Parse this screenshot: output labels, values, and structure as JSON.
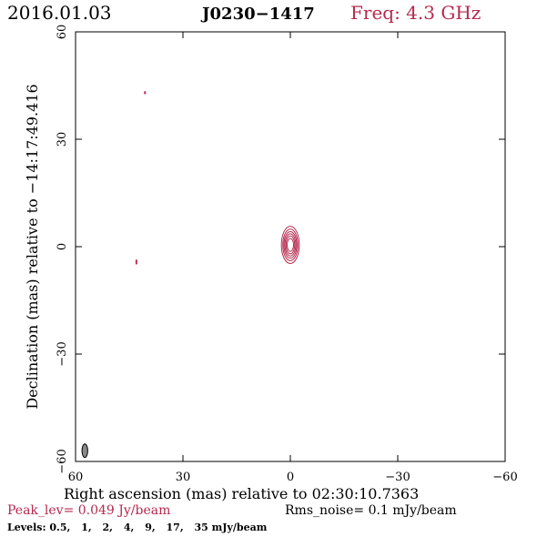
{
  "header": {
    "date": "2016.01.03",
    "source": "J0230−1417",
    "freq": "Freq: 4.3 GHz"
  },
  "colors": {
    "accent": "#b5294d",
    "frame": "#000000",
    "beam": "#888888"
  },
  "footer": {
    "peak": "Peak_lev=  0.049 Jy/beam",
    "rms": "Rms_noise=  0.1 mJy/beam",
    "levels_label": "Levels:",
    "levels": [
      "0.5,",
      "1,",
      "2,",
      "4,",
      "9,",
      "17,",
      "35 mJy/beam"
    ]
  },
  "chart_data": {
    "type": "contour",
    "xlabel": "Right ascension (mas) relative to 02:30:10.7363",
    "ylabel": "Declination (mas) relative to −14:17:49.416",
    "xlim": [
      60,
      -60
    ],
    "ylim": [
      -60,
      60
    ],
    "xticks": [
      60,
      30,
      0,
      -30,
      -60
    ],
    "yticks": [
      -60,
      -30,
      0,
      30,
      60
    ],
    "xtick_labels": [
      "60",
      "30",
      "0",
      "−30",
      "−60"
    ],
    "ytick_labels": [
      "−60",
      "−30",
      "0",
      "30",
      "60"
    ],
    "contour_levels_mJy": [
      0.5,
      1,
      2,
      4,
      9,
      17,
      35
    ],
    "source_center": [
      0.0,
      0.5
    ],
    "source_contours": [
      {
        "a": 0.9,
        "b": 1.8
      },
      {
        "a": 1.2,
        "b": 2.5
      },
      {
        "a": 1.5,
        "b": 3.1
      },
      {
        "a": 1.8,
        "b": 3.7
      },
      {
        "a": 2.1,
        "b": 4.4
      },
      {
        "a": 2.5,
        "b": 5.2
      }
    ],
    "minor_features": [
      {
        "x": 40.6,
        "y": 43.0,
        "a": 0.15,
        "b": 0.3
      },
      {
        "x": 43.0,
        "y": -4.3,
        "a": 0.15,
        "b": 0.6
      }
    ],
    "beam": {
      "x": 57.4,
      "y": -57.0,
      "a": 0.8,
      "b": 1.9
    }
  }
}
